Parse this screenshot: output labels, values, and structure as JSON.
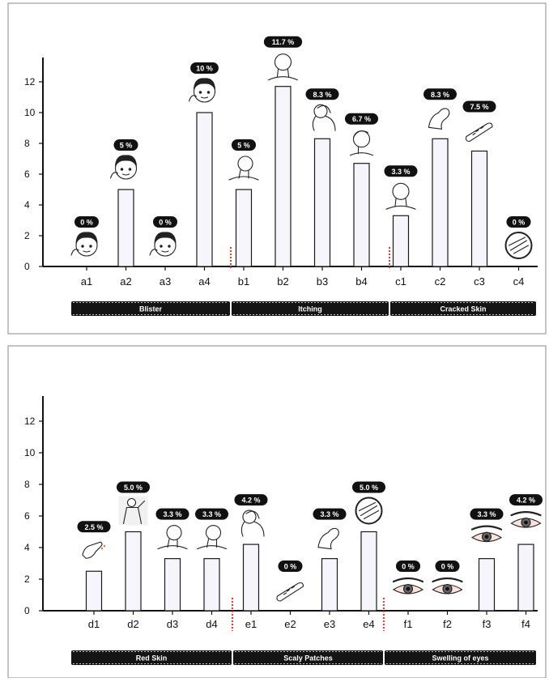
{
  "chart_data": [
    {
      "type": "bar",
      "ylim": [
        0,
        14
      ],
      "yticks": [
        0,
        2,
        4,
        6,
        8,
        10,
        12
      ],
      "grid": false,
      "categories": [
        "a1",
        "a2",
        "a3",
        "a4",
        "b1",
        "b2",
        "b3",
        "b4",
        "c1",
        "c2",
        "c3",
        "c4"
      ],
      "values": [
        0,
        5,
        0,
        10,
        5,
        11.7,
        8.3,
        6.7,
        3.3,
        8.3,
        7.5,
        0
      ],
      "data_labels": [
        "0 %",
        "5 %",
        "0 %",
        "10 %",
        "5 %",
        "11.7 %",
        "8.3 %",
        "6.7 %",
        "3.3 %",
        "8.3 %",
        "7.5 %",
        "0 %"
      ],
      "icons": [
        "face-icon",
        "face-icon",
        "face-icon",
        "face-icon",
        "neck-icon",
        "head-back-icon",
        "shoulder-icon",
        "head-side-icon",
        "head-back-icon",
        "arm-icon",
        "forearm-icon",
        "skin-patch-icon"
      ],
      "groups": [
        {
          "label": "Blister",
          "span": [
            0,
            3
          ]
        },
        {
          "label": "Itching",
          "span": [
            4,
            7
          ]
        },
        {
          "label": "Cracked Skin",
          "span": [
            8,
            11
          ]
        }
      ]
    },
    {
      "type": "bar",
      "ylim": [
        0,
        14
      ],
      "yticks": [
        0,
        2,
        4,
        6,
        8,
        10,
        12
      ],
      "grid": false,
      "categories": [
        "d1",
        "d2",
        "d3",
        "d4",
        "e1",
        "e2",
        "e3",
        "e4",
        "f1",
        "f2",
        "f3",
        "f4"
      ],
      "values": [
        2.5,
        5.0,
        3.3,
        3.3,
        4.2,
        0,
        3.3,
        5.0,
        0,
        0,
        3.3,
        4.2
      ],
      "data_labels": [
        "2.5 %",
        "5.0 %",
        "3.3 %",
        "3.3 %",
        "4.2 %",
        "0 %",
        "3.3 %",
        "5.0 %",
        "0 %",
        "0 %",
        "3.3 %",
        "4.2 %"
      ],
      "icons": [
        "hand-icon",
        "torso-icon",
        "neck-icon",
        "neck-icon",
        "shoulder-icon",
        "forearm-icon",
        "arm-icon",
        "skin-patch-icon",
        "eye-icon",
        "eye-icon",
        "eye-icon",
        "eye-icon"
      ],
      "groups": [
        {
          "label": "Red Skin",
          "span": [
            0,
            3
          ]
        },
        {
          "label": "Scaly Patches",
          "span": [
            4,
            7
          ]
        },
        {
          "label": "Swelling of eyes",
          "span": [
            8,
            11
          ]
        }
      ]
    }
  ],
  "colors": {
    "bar_fill": "#f6f5fb",
    "bar_stroke": "#1a1a1a",
    "pill_fill": "#111111",
    "pill_text": "#ffffff",
    "axis": "#111111",
    "separator": "#e63b2e",
    "eye_accent": "#e07050"
  }
}
